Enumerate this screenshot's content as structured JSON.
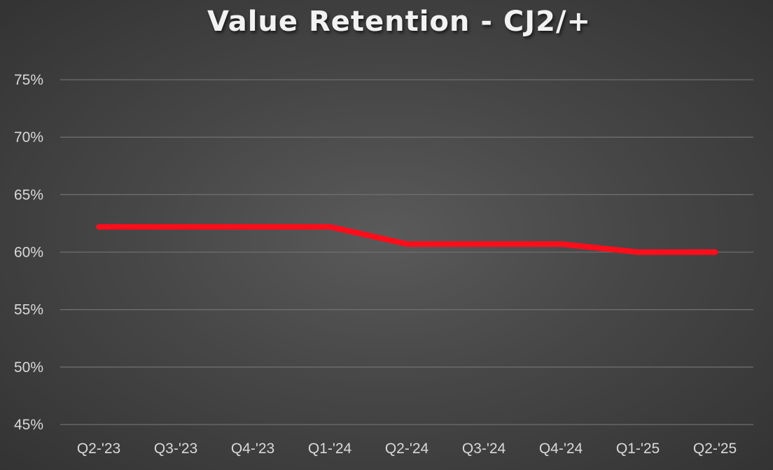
{
  "chart_data": {
    "type": "line",
    "title": "Value Retention - CJ2/+",
    "xlabel": "",
    "ylabel": "",
    "categories": [
      "Q2-'23",
      "Q3-'23",
      "Q4-'23",
      "Q1-'24",
      "Q2-'24",
      "Q3-'24",
      "Q4-'24",
      "Q1-'25",
      "Q2-'25"
    ],
    "series": [
      {
        "values": [
          62.2,
          62.2,
          62.2,
          62.2,
          60.7,
          60.7,
          60.7,
          60.0,
          60.0
        ],
        "color": "#ff0d1a"
      }
    ],
    "ylim": [
      45,
      75
    ],
    "yticks": [
      45,
      50,
      55,
      60,
      65,
      70,
      75
    ],
    "ytick_labels": [
      "45%",
      "50%",
      "55%",
      "60%",
      "65%",
      "70%",
      "75%"
    ],
    "grid": true,
    "legend": "none"
  }
}
